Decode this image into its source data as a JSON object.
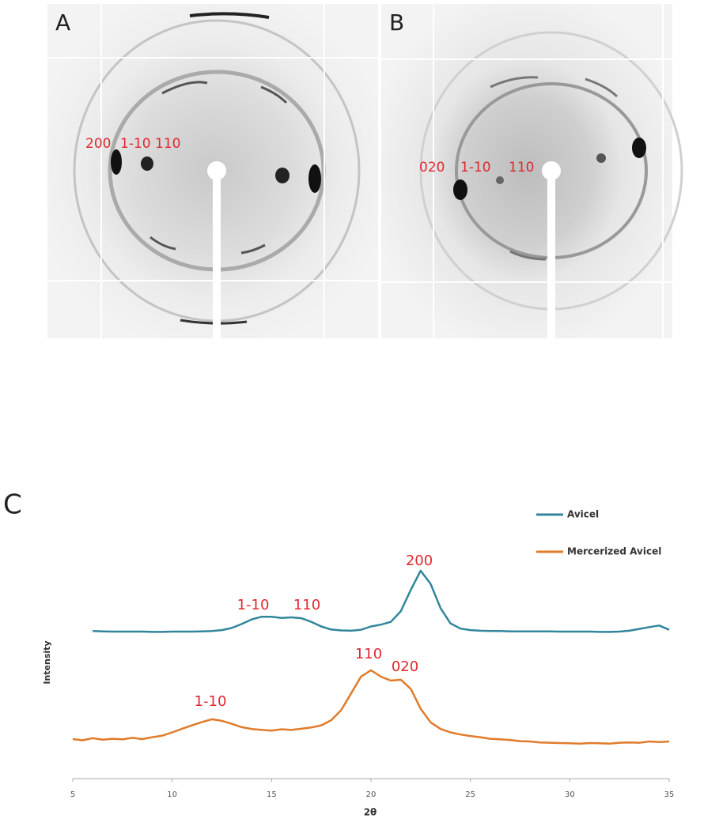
{
  "panels": [
    {
      "label": "A",
      "reflections": [
        "200",
        "1-10",
        "110"
      ]
    },
    {
      "label": "B",
      "reflections": [
        "020",
        "1-10",
        "110"
      ]
    }
  ],
  "chart_data": {
    "type": "line",
    "label": "C",
    "xlabel": "2θ",
    "ylabel": "Intensity",
    "xlim": [
      5,
      35
    ],
    "xticks": [
      5,
      10,
      15,
      20,
      25,
      30,
      35
    ],
    "ylim": [
      0,
      100
    ],
    "legend": "top-right",
    "series": [
      {
        "name": "Avicel",
        "color": "#31869b",
        "x": [
          6,
          6.5,
          7,
          7.5,
          8,
          8.5,
          9,
          9.5,
          10,
          10.5,
          11,
          11.5,
          12,
          12.5,
          13,
          13.5,
          14,
          14.5,
          15,
          15.5,
          16,
          16.5,
          17,
          17.5,
          18,
          18.5,
          19,
          19.5,
          20,
          20.5,
          21,
          21.5,
          22,
          22.5,
          23,
          23.5,
          24,
          24.5,
          25,
          25.5,
          26,
          26.5,
          27,
          27.5,
          28,
          28.5,
          29,
          29.5,
          30,
          30.5,
          31,
          31.5,
          32,
          32.5,
          33,
          33.5,
          34,
          34.5,
          35
        ],
        "values": [
          48.5,
          48.4,
          48.3,
          48.3,
          48.3,
          48.3,
          48.2,
          48.2,
          48.3,
          48.3,
          48.3,
          48.4,
          48.5,
          48.8,
          49.5,
          50.8,
          52.3,
          53.2,
          53.2,
          52.8,
          53,
          52.7,
          51.5,
          50,
          49,
          48.7,
          48.6,
          48.9,
          50,
          50.6,
          51.5,
          55,
          62,
          68.3,
          64,
          56,
          51,
          49.3,
          48.8,
          48.6,
          48.5,
          48.5,
          48.4,
          48.4,
          48.4,
          48.4,
          48.4,
          48.3,
          48.3,
          48.3,
          48.3,
          48.2,
          48.2,
          48.3,
          48.6,
          49.2,
          49.8,
          50.3,
          48.9
        ]
      },
      {
        "name": "Mercerized Avicel",
        "color": "#e07b2a",
        "x": [
          5,
          5.5,
          6,
          6.5,
          7,
          7.5,
          8,
          8.5,
          9,
          9.5,
          10,
          10.5,
          11,
          11.5,
          12,
          12.5,
          13,
          13.5,
          14,
          14.5,
          15,
          15.5,
          16,
          16.5,
          17,
          17.5,
          18,
          18.5,
          19,
          19.5,
          20,
          20.5,
          21,
          21.5,
          22,
          22.5,
          23,
          23.5,
          24,
          24.5,
          25,
          25.5,
          26,
          26.5,
          27,
          27.5,
          28,
          28.5,
          29,
          29.5,
          30,
          30.5,
          31,
          31.5,
          32,
          32.5,
          33,
          33.5,
          34,
          34.5,
          35
        ],
        "values": [
          13.0,
          12.6,
          13.3,
          12.8,
          13.1,
          12.9,
          13.4,
          13.0,
          13.6,
          14.1,
          15.2,
          16.4,
          17.5,
          18.6,
          19.5,
          19.0,
          18.0,
          16.9,
          16.3,
          16.0,
          15.8,
          16.2,
          16.0,
          16.4,
          16.8,
          17.5,
          19.2,
          22.5,
          28,
          33.5,
          35.6,
          33.5,
          32.2,
          32.5,
          29.5,
          23,
          18.5,
          16.3,
          15.2,
          14.5,
          14.0,
          13.6,
          13.1,
          12.9,
          12.7,
          12.3,
          12.2,
          11.9,
          11.8,
          11.7,
          11.6,
          11.5,
          11.7,
          11.6,
          11.5,
          11.8,
          11.9,
          11.8,
          12.2,
          12.0,
          12.2
        ]
      }
    ],
    "annotations": [
      "1-10",
      "110",
      "200",
      "1-10",
      "110",
      "020"
    ]
  }
}
